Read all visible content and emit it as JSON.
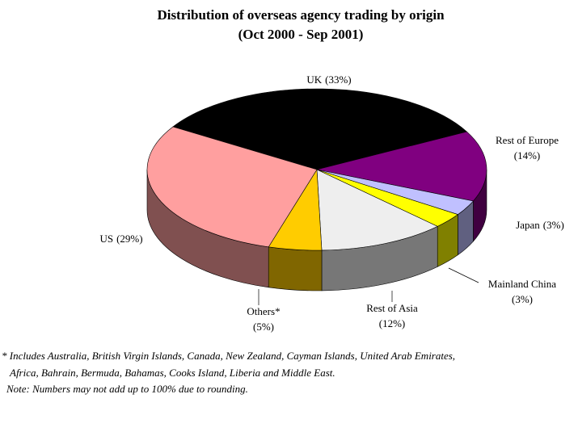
{
  "chart_data": {
    "type": "pie3d",
    "title": "Distribution of overseas agency trading by origin",
    "subtitle": "(Oct 2000 - Sep 2001)",
    "categories": [
      "UK",
      "Rest of Europe",
      "Japan",
      "Mainland China",
      "Rest of Asia",
      "Others*",
      "US"
    ],
    "values": [
      33,
      14,
      3,
      3,
      12,
      5,
      29
    ],
    "value_labels": [
      "(33%)",
      "(14%)",
      "(3%)",
      "(3%)",
      "(12%)",
      "(5%)",
      "(29%)"
    ],
    "colors": [
      "#000000",
      "#800080",
      "#c0c0ff",
      "#ffff00",
      "#eeeeee",
      "#ffcc00",
      "#ff9f9f"
    ],
    "footnotes": [
      "* Includes Australia, British Virgin Islands, Canada, New Zealand, Cayman Islands, United Arab Emirates,",
      "Africa, Bahrain, Bermuda, Bahamas, Cooks Island, Liberia and Middle East.",
      "Note: Numbers may not add up to 100% due to rounding."
    ]
  }
}
